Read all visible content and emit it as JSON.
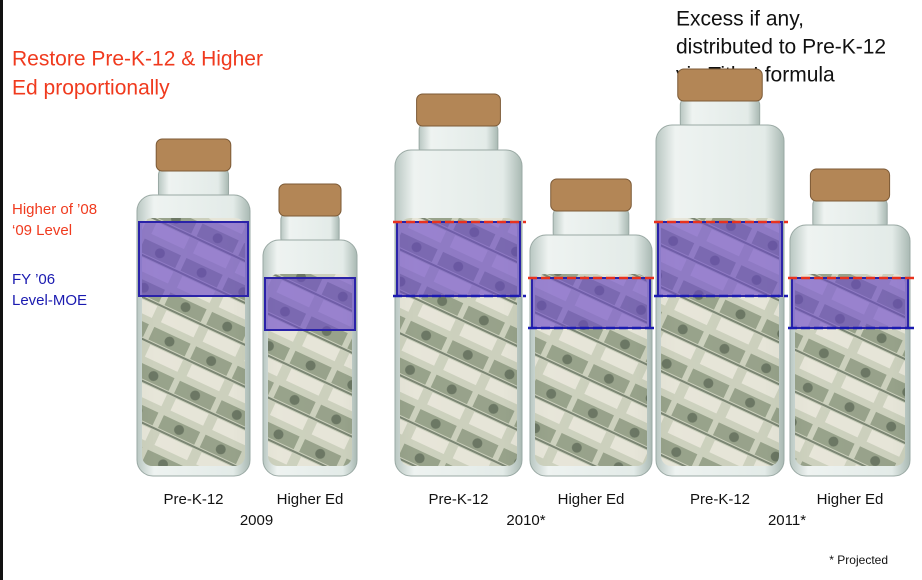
{
  "title": {
    "lines": [
      "Restore Pre-K-12 & Higher",
      "Ed proportionally"
    ]
  },
  "note": {
    "lines": [
      "Excess if any,",
      "distributed to Pre-K-12",
      "via Title I formula"
    ]
  },
  "legend": [
    {
      "lines": [
        "Higher of ’08",
        "‘09 Level"
      ]
    },
    {
      "lines": [
        "FY ’06",
        "Level-MOE"
      ]
    }
  ],
  "groups": [
    {
      "year": "2009",
      "jars": [
        "Pre-K-12",
        "Higher Ed"
      ]
    },
    {
      "year": "2010*",
      "jars": [
        "Pre-K-12",
        "Higher Ed"
      ]
    },
    {
      "year": "2011*",
      "jars": [
        "Pre-K-12",
        "Higher Ed"
      ]
    }
  ],
  "footnote": "* Projected"
}
